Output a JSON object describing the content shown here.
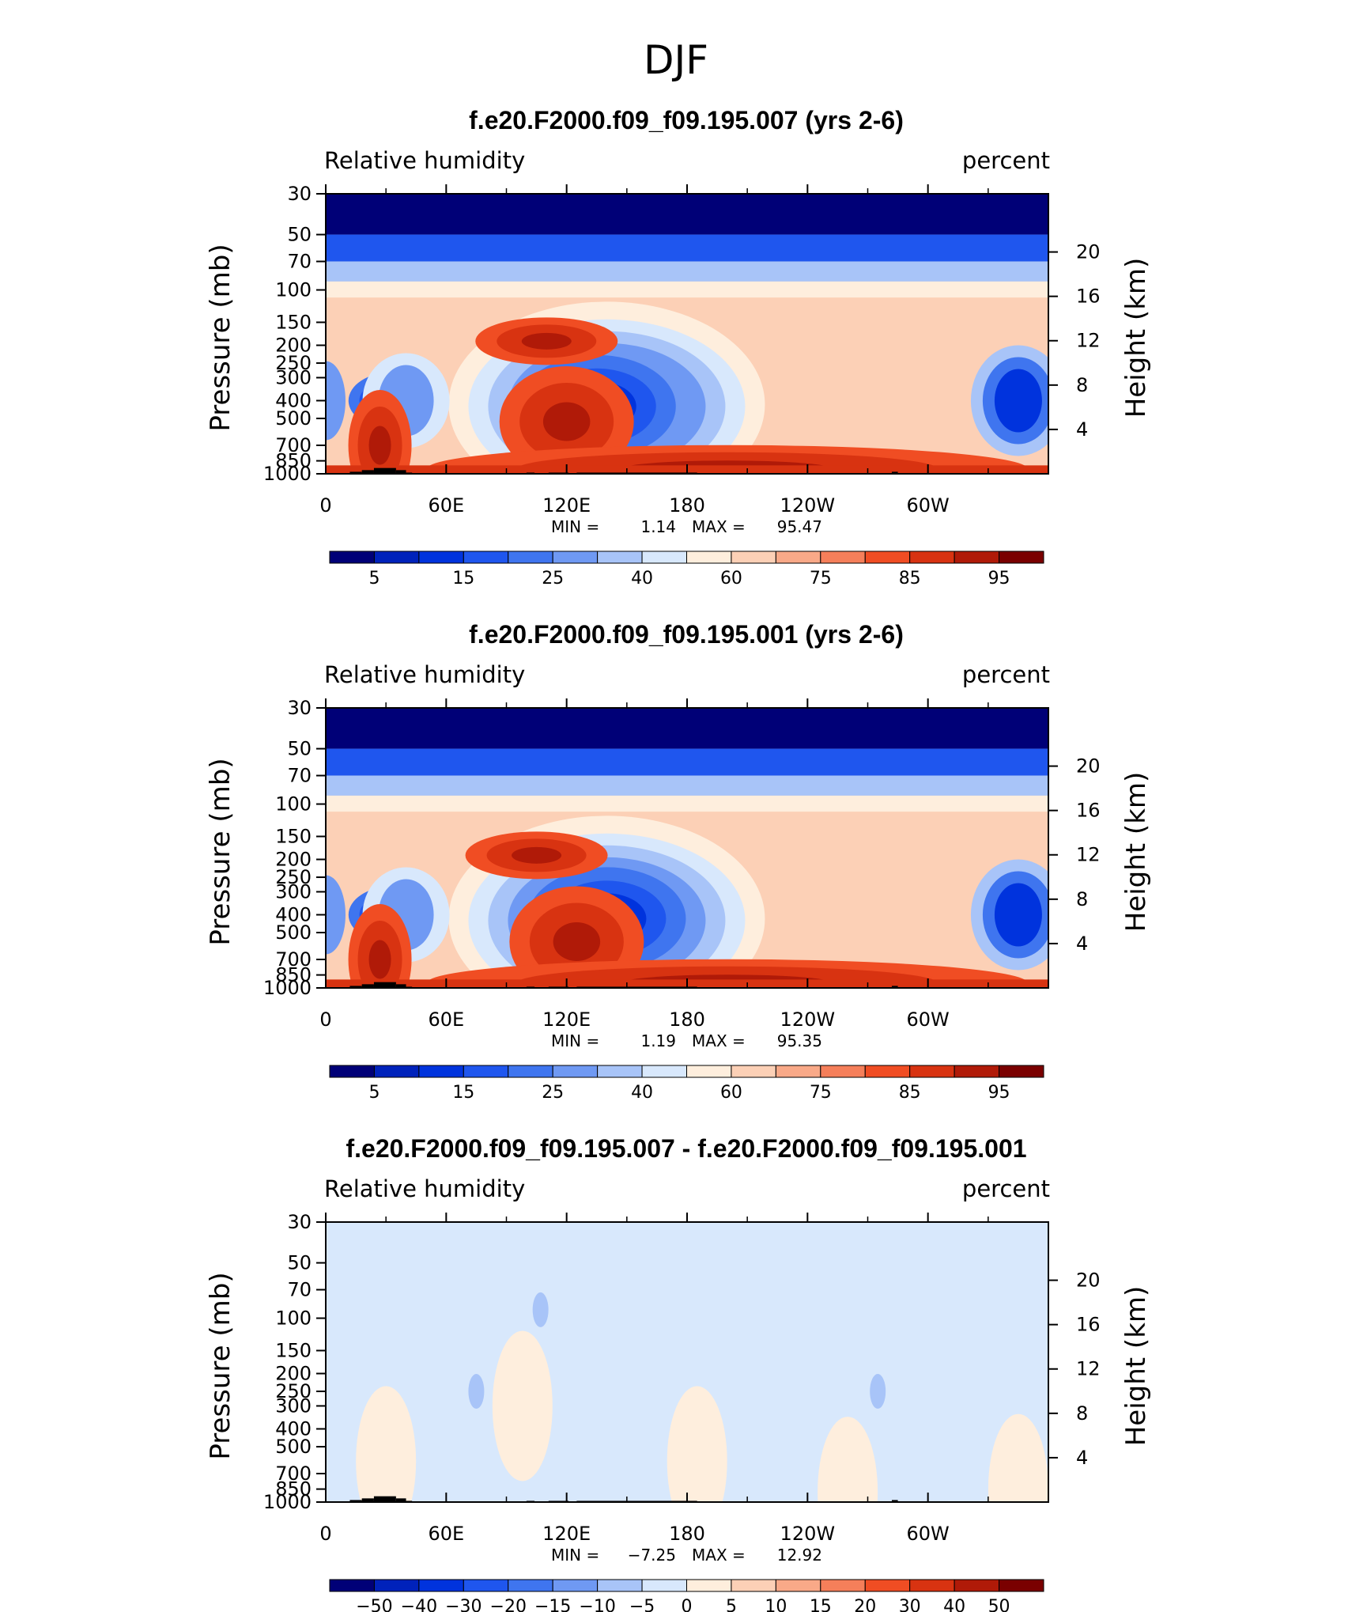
{
  "header": {
    "title": "DJF"
  },
  "colors": {
    "rh_levels": [
      "#000077",
      "#0022bb",
      "#0033dd",
      "#1f56ee",
      "#3f75ef",
      "#6f99f3",
      "#a8c4f8",
      "#d8e8fc",
      "#feeedd",
      "#fcd0b6",
      "#f9a988",
      "#f57f5a",
      "#f04d23",
      "#d83311",
      "#b01a08",
      "#7a0000"
    ],
    "diff_levels": [
      "#000077",
      "#0022bb",
      "#0033dd",
      "#1f56ee",
      "#3f75ef",
      "#6f99f3",
      "#a8c4f8",
      "#d8e8fc",
      "#feeedd",
      "#fcd0b6",
      "#f9a988",
      "#f57f5a",
      "#f04d23",
      "#d83311",
      "#b01a08",
      "#7a0000"
    ]
  },
  "chart_data": [
    {
      "type": "heatmap",
      "title": "f.e20.F2000.f09_f09.195.007 (yrs 2-6)",
      "left_label": "Relative humidity",
      "right_label": "percent",
      "ylabel": "Pressure (mb)",
      "ylabel_right": "Height (km)",
      "x_ticks": [
        "0",
        "60E",
        "120E",
        "180",
        "120W",
        "60W"
      ],
      "x_range": [
        0,
        360
      ],
      "y_ticks": [
        "30",
        "50",
        "70",
        "100",
        "150",
        "200",
        "250",
        "300",
        "400",
        "500",
        "700",
        "850",
        "1000"
      ],
      "y_range": [
        30,
        1000
      ],
      "height_ticks": [
        "20",
        "16",
        "12",
        "8",
        "4"
      ],
      "min_label": "MIN =",
      "min_value": "1.14",
      "max_label": "MAX =",
      "max_value": "95.47",
      "colorbar_labels": [
        "5",
        "15",
        "25",
        "40",
        "60",
        "75",
        "85",
        "95"
      ],
      "dry_centers": [
        {
          "lon": 135,
          "p": 430,
          "value": 10
        },
        {
          "lon": 345,
          "p": 400,
          "value": 15
        },
        {
          "lon": 33,
          "p": 400,
          "value": 25
        }
      ],
      "moist_centers": [
        {
          "lon": 110,
          "p": 190,
          "value": 93
        },
        {
          "lon": 120,
          "p": 520,
          "value": 90
        },
        {
          "lon": 27,
          "p": 700,
          "value": 90
        },
        {
          "lon": 200,
          "p": 940,
          "value": 95
        }
      ]
    },
    {
      "type": "heatmap",
      "title": "f.e20.F2000.f09_f09.195.001 (yrs 2-6)",
      "left_label": "Relative humidity",
      "right_label": "percent",
      "ylabel": "Pressure (mb)",
      "ylabel_right": "Height (km)",
      "x_ticks": [
        "0",
        "60E",
        "120E",
        "180",
        "120W",
        "60W"
      ],
      "x_range": [
        0,
        360
      ],
      "y_ticks": [
        "30",
        "50",
        "70",
        "100",
        "150",
        "200",
        "250",
        "300",
        "400",
        "500",
        "700",
        "850",
        "1000"
      ],
      "y_range": [
        30,
        1000
      ],
      "height_ticks": [
        "20",
        "16",
        "12",
        "8",
        "4"
      ],
      "min_label": "MIN =",
      "min_value": "1.19",
      "max_label": "MAX =",
      "max_value": "95.35",
      "colorbar_labels": [
        "5",
        "15",
        "25",
        "40",
        "60",
        "75",
        "85",
        "95"
      ],
      "dry_centers": [
        {
          "lon": 140,
          "p": 420,
          "value": 10
        },
        {
          "lon": 345,
          "p": 400,
          "value": 15
        },
        {
          "lon": 33,
          "p": 400,
          "value": 25
        }
      ],
      "moist_centers": [
        {
          "lon": 105,
          "p": 190,
          "value": 93
        },
        {
          "lon": 125,
          "p": 560,
          "value": 90
        },
        {
          "lon": 27,
          "p": 700,
          "value": 90
        },
        {
          "lon": 200,
          "p": 940,
          "value": 95
        }
      ]
    },
    {
      "type": "heatmap",
      "title": "f.e20.F2000.f09_f09.195.007 - f.e20.F2000.f09_f09.195.001",
      "left_label": "Relative humidity",
      "right_label": "percent",
      "ylabel": "Pressure (mb)",
      "ylabel_right": "Height (km)",
      "x_ticks": [
        "0",
        "60E",
        "120E",
        "180",
        "120W",
        "60W"
      ],
      "x_range": [
        0,
        360
      ],
      "y_ticks": [
        "30",
        "50",
        "70",
        "100",
        "150",
        "200",
        "250",
        "300",
        "400",
        "500",
        "700",
        "850",
        "1000"
      ],
      "y_range": [
        30,
        1000
      ],
      "height_ticks": [
        "20",
        "16",
        "12",
        "8",
        "4"
      ],
      "min_label": "MIN =",
      "min_value": "−7.25",
      "max_label": "MAX =",
      "max_value": "12.92",
      "colorbar_labels": [
        "−50",
        "−40",
        "−30",
        "−20",
        "−15",
        "−10",
        "−5",
        "0",
        "5",
        "10",
        "15",
        "20",
        "30",
        "40",
        "50"
      ],
      "positive_regions": [
        {
          "lon": 30,
          "p": 600,
          "value": 3
        },
        {
          "lon": 98,
          "p": 300,
          "value": 2
        },
        {
          "lon": 185,
          "p": 600,
          "value": 2
        },
        {
          "lon": 260,
          "p": 880,
          "value": 2
        },
        {
          "lon": 345,
          "p": 850,
          "value": 2
        }
      ],
      "negative_regions": [
        {
          "lon": 75,
          "p": 250,
          "value": -6
        },
        {
          "lon": 275,
          "p": 250,
          "value": -6
        },
        {
          "lon": 107,
          "p": 90,
          "value": -6
        }
      ]
    }
  ]
}
